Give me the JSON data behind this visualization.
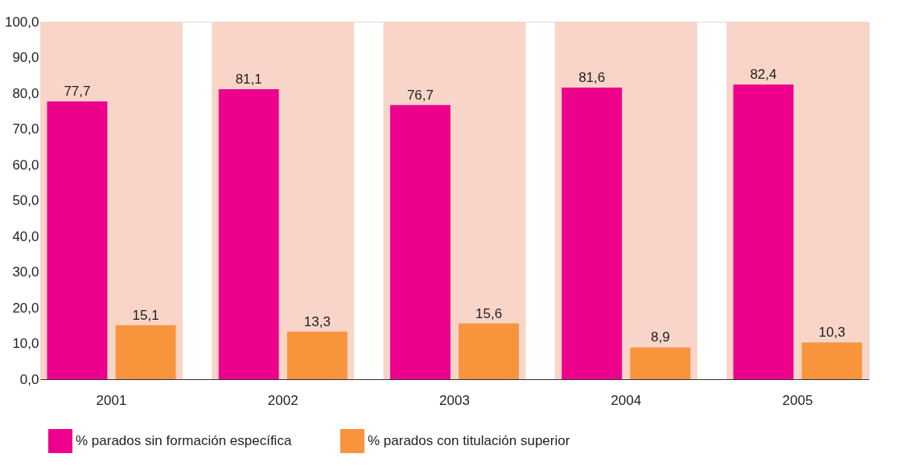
{
  "chart_data": {
    "type": "bar",
    "categories": [
      "2001",
      "2002",
      "2003",
      "2004",
      "2005"
    ],
    "series": [
      {
        "name": "% parados sin formación específica",
        "color": "#ec008c",
        "values": [
          77.7,
          81.1,
          76.7,
          81.6,
          82.4
        ],
        "value_labels": [
          "77,7",
          "81,1",
          "76,7",
          "81,6",
          "82,4"
        ]
      },
      {
        "name": "% parados con titulación superior",
        "color": "#f7943c",
        "values": [
          15.1,
          13.3,
          15.6,
          8.9,
          10.3
        ],
        "value_labels": [
          "15,1",
          "13,3",
          "15,6",
          "8,9",
          "10,3"
        ]
      }
    ],
    "ylim": [
      0,
      100
    ],
    "yticks": [
      {
        "value": 0,
        "label": "0,0"
      },
      {
        "value": 10,
        "label": "10,0"
      },
      {
        "value": 20,
        "label": "20,0"
      },
      {
        "value": 30,
        "label": "30,0"
      },
      {
        "value": 40,
        "label": "40,0"
      },
      {
        "value": 50,
        "label": "50,0"
      },
      {
        "value": 60,
        "label": "60,0"
      },
      {
        "value": 70,
        "label": "70,0"
      },
      {
        "value": 80,
        "label": "80,0"
      },
      {
        "value": 90,
        "label": "90,0"
      },
      {
        "value": 100,
        "label": "100,0"
      }
    ],
    "bands": [
      {
        "axis": "x",
        "from": "2001",
        "to": "2001",
        "color": "#f8d5c8"
      },
      {
        "axis": "x",
        "from": "2002",
        "to": "2002",
        "color": "#f8d5c8"
      },
      {
        "axis": "x",
        "from": "2003",
        "to": "2003",
        "color": "#f8d5c8"
      },
      {
        "axis": "x",
        "from": "2004",
        "to": "2004",
        "color": "#f8d5c8"
      },
      {
        "axis": "x",
        "from": "2005",
        "to": "2005",
        "color": "#f8d5c8"
      }
    ],
    "grid": false,
    "legend": "bottom"
  }
}
